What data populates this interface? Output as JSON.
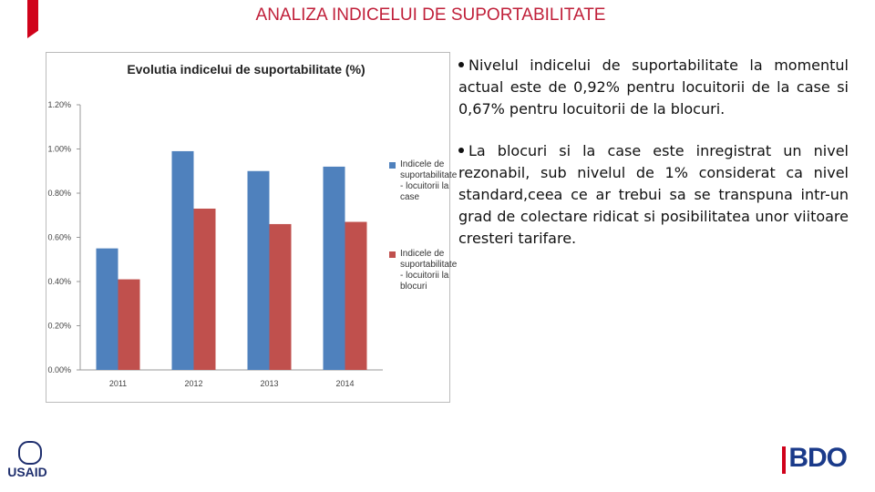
{
  "header": {
    "title": "ANALIZA INDICELUI DE SUPORTABILITATE"
  },
  "chart_data": {
    "type": "bar",
    "title": "Evolutia indicelui de suportabilitate (%)",
    "categories": [
      "2011",
      "2012",
      "2013",
      "2014"
    ],
    "series": [
      {
        "name": "Indicele de suportabilitate - locuitorii la case",
        "color": "#4f81bd",
        "values": [
          0.55,
          0.99,
          0.9,
          0.92
        ]
      },
      {
        "name": "Indicele de suportabilitate - locuitorii la blocuri",
        "color": "#c0504d",
        "values": [
          0.41,
          0.73,
          0.66,
          0.67
        ]
      }
    ],
    "ylim": [
      0,
      1.2
    ],
    "yticks": [
      {
        "value": 0,
        "label": "0.00%"
      },
      {
        "value": 0.2,
        "label": "0.20%"
      },
      {
        "value": 0.4,
        "label": "0.40%"
      },
      {
        "value": 0.6,
        "label": "0.60%"
      },
      {
        "value": 0.8,
        "label": "0.80%"
      },
      {
        "value": 1.0,
        "label": "1.00%"
      },
      {
        "value": 1.2,
        "label": "1.20%"
      }
    ],
    "grid": false,
    "legend": "right"
  },
  "bullets": [
    "Nivelul indicelui de suportabilitate la momentul actual este de 0,92% pentru locuitorii de la case si 0,67% pentru locuitorii de la blocuri.",
    "La blocuri si la case este inregistrat un nivel rezonabil, sub nivelul de 1% considerat ca nivel standard,ceea ce ar trebui sa se transpuna intr-un grad de colectare ridicat si posibilitatea unor viitoare cresteri tarifare."
  ],
  "logos": {
    "left": "USAID",
    "right": "BDO"
  }
}
